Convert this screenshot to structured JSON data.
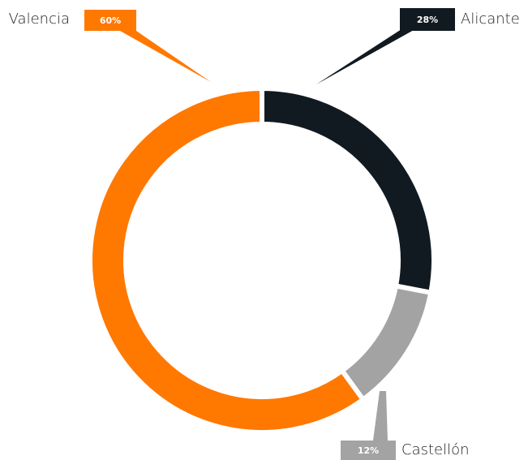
{
  "chart_data": {
    "type": "donut",
    "categories": [
      "Alicante",
      "Castellón",
      "Valencia"
    ],
    "values": [
      28,
      12,
      60
    ],
    "value_labels": [
      "28%",
      "12%",
      "60%"
    ],
    "colors": [
      "#121a21",
      "#a3a3a3",
      "#ff7800"
    ]
  }
}
